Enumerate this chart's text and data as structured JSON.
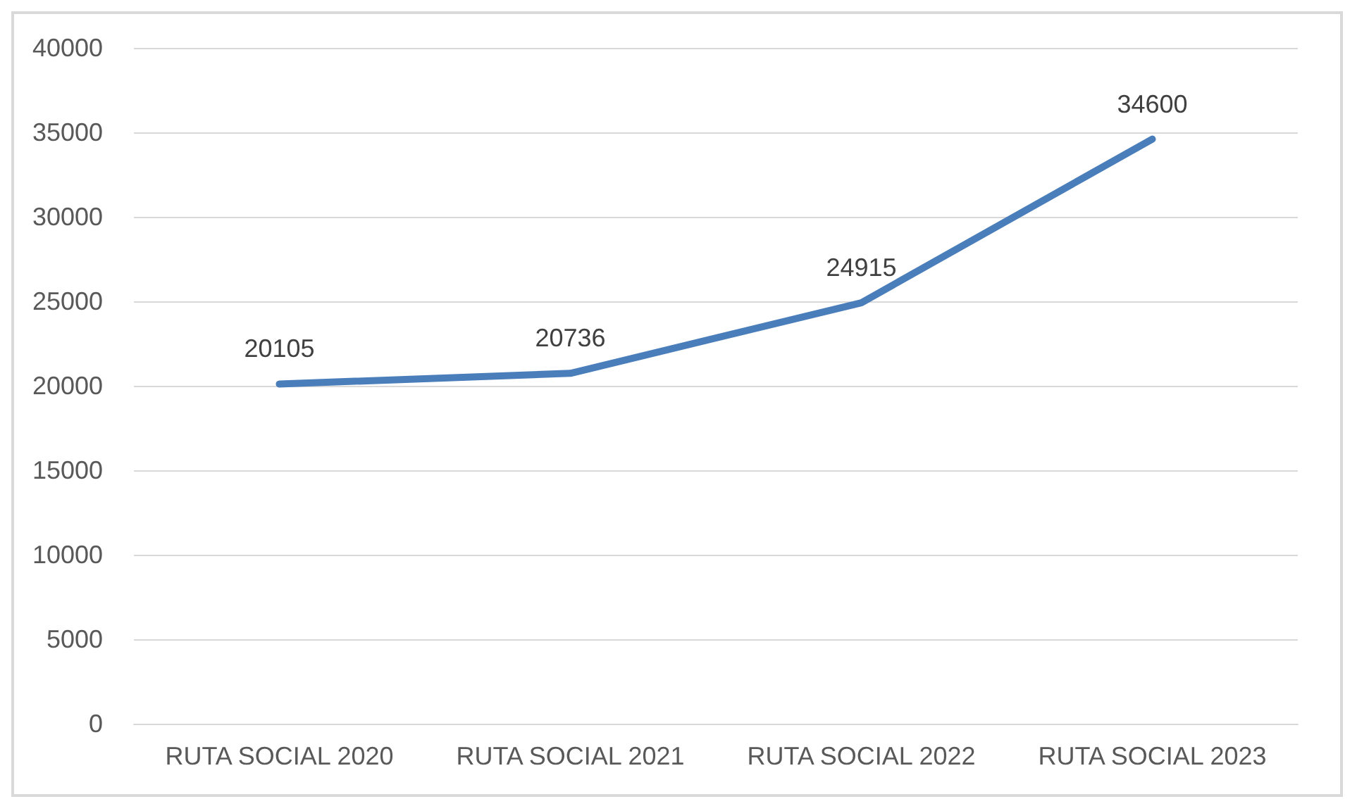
{
  "chart_data": {
    "type": "line",
    "categories": [
      "RUTA SOCIAL 2020",
      "RUTA SOCIAL 2021",
      "RUTA SOCIAL 2022",
      "RUTA SOCIAL 2023"
    ],
    "series": [
      {
        "color": "#4a7ebb",
        "values": [
          20105,
          20736,
          24915,
          34600
        ]
      }
    ],
    "ylim": [
      0,
      40000
    ],
    "yticks": [
      0,
      5000,
      10000,
      15000,
      20000,
      25000,
      30000,
      35000,
      40000
    ],
    "grid": "y",
    "data_labels": true,
    "marker": "none",
    "line_style": "solid"
  }
}
